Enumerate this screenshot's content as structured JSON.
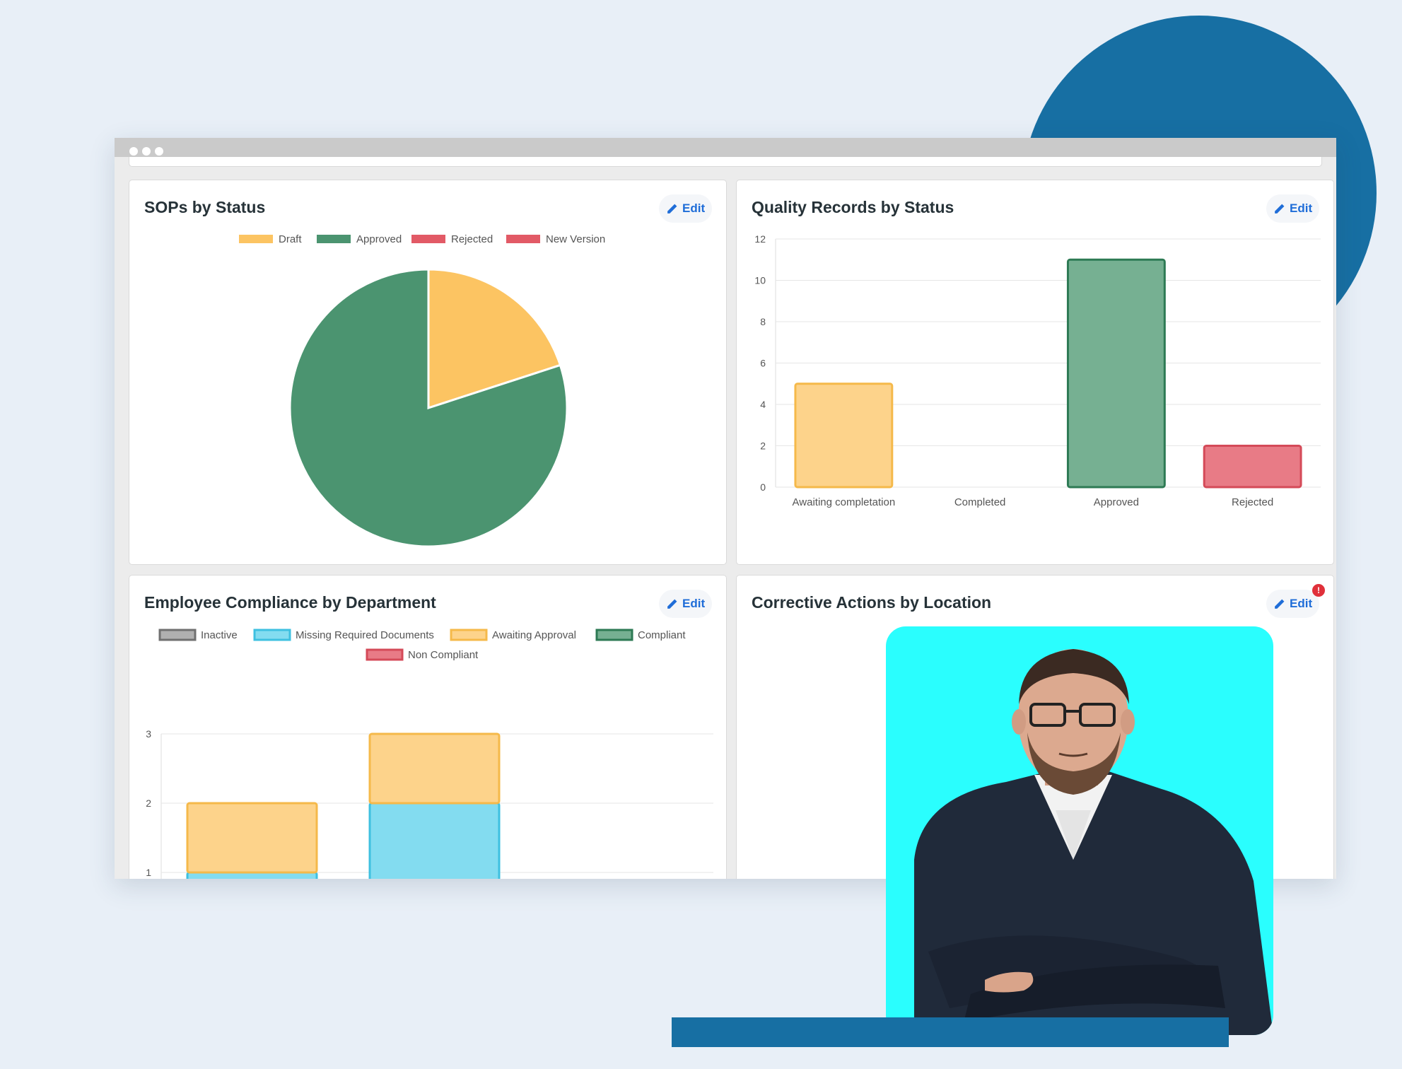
{
  "colors": {
    "draft": "#fcc462",
    "approved": "#4b9470",
    "rejected": "#e25a66",
    "new_version": "#e25a66",
    "inactive": "#9e9e9e",
    "missing_docs": "#83dcf0",
    "awaiting_approval": "#fdd38b",
    "compliant": "#4b9470",
    "non_compliant": "#e87b86",
    "accent": "#1f6dd8",
    "brand_blue": "#176fa3",
    "photo_bg": "#2afefe"
  },
  "window": {
    "controls": [
      "dot-1",
      "dot-2",
      "dot-3"
    ]
  },
  "cards": {
    "sops": {
      "title": "SOPs by Status",
      "edit_label": "Edit"
    },
    "quality": {
      "title": "Quality Records by Status",
      "edit_label": "Edit"
    },
    "employee": {
      "title": "Employee Compliance by Department",
      "edit_label": "Edit"
    },
    "corrective": {
      "title": "Corrective Actions by Location",
      "edit_label": "Edit",
      "alert_badge": "!"
    }
  },
  "chart_data": [
    {
      "id": "sops",
      "type": "pie",
      "title": "SOPs by Status",
      "legend": [
        "Draft",
        "Approved",
        "Rejected",
        "New Version"
      ],
      "legend_position": "top",
      "values": [
        2,
        8,
        0,
        0
      ]
    },
    {
      "id": "quality",
      "type": "bar",
      "title": "Quality Records by Status",
      "categories": [
        "Awaiting completation",
        "Completed",
        "Approved",
        "Rejected"
      ],
      "values": [
        5,
        0,
        11,
        2
      ],
      "ylim": [
        0,
        12
      ],
      "yticks": [
        "0",
        "2",
        "4",
        "6",
        "8",
        "10",
        "12"
      ],
      "grid": true
    },
    {
      "id": "employee",
      "type": "bar",
      "stacked": true,
      "title": "Employee Compliance by Department",
      "legend": [
        "Inactive",
        "Missing Required Documents",
        "Awaiting Approval",
        "Compliant",
        "Non Compliant"
      ],
      "legend_position": "top",
      "series": [
        {
          "name": "Inactive",
          "values": [
            0,
            0
          ]
        },
        {
          "name": "Missing Required Documents",
          "values": [
            1,
            2
          ]
        },
        {
          "name": "Awaiting Approval",
          "values": [
            1,
            1
          ]
        },
        {
          "name": "Compliant",
          "values": [
            0,
            0
          ]
        },
        {
          "name": "Non Compliant",
          "values": [
            0,
            0
          ]
        }
      ],
      "yticks": [
        "1",
        "2",
        "3"
      ],
      "ylim": [
        0,
        3
      ],
      "grid": true
    }
  ]
}
